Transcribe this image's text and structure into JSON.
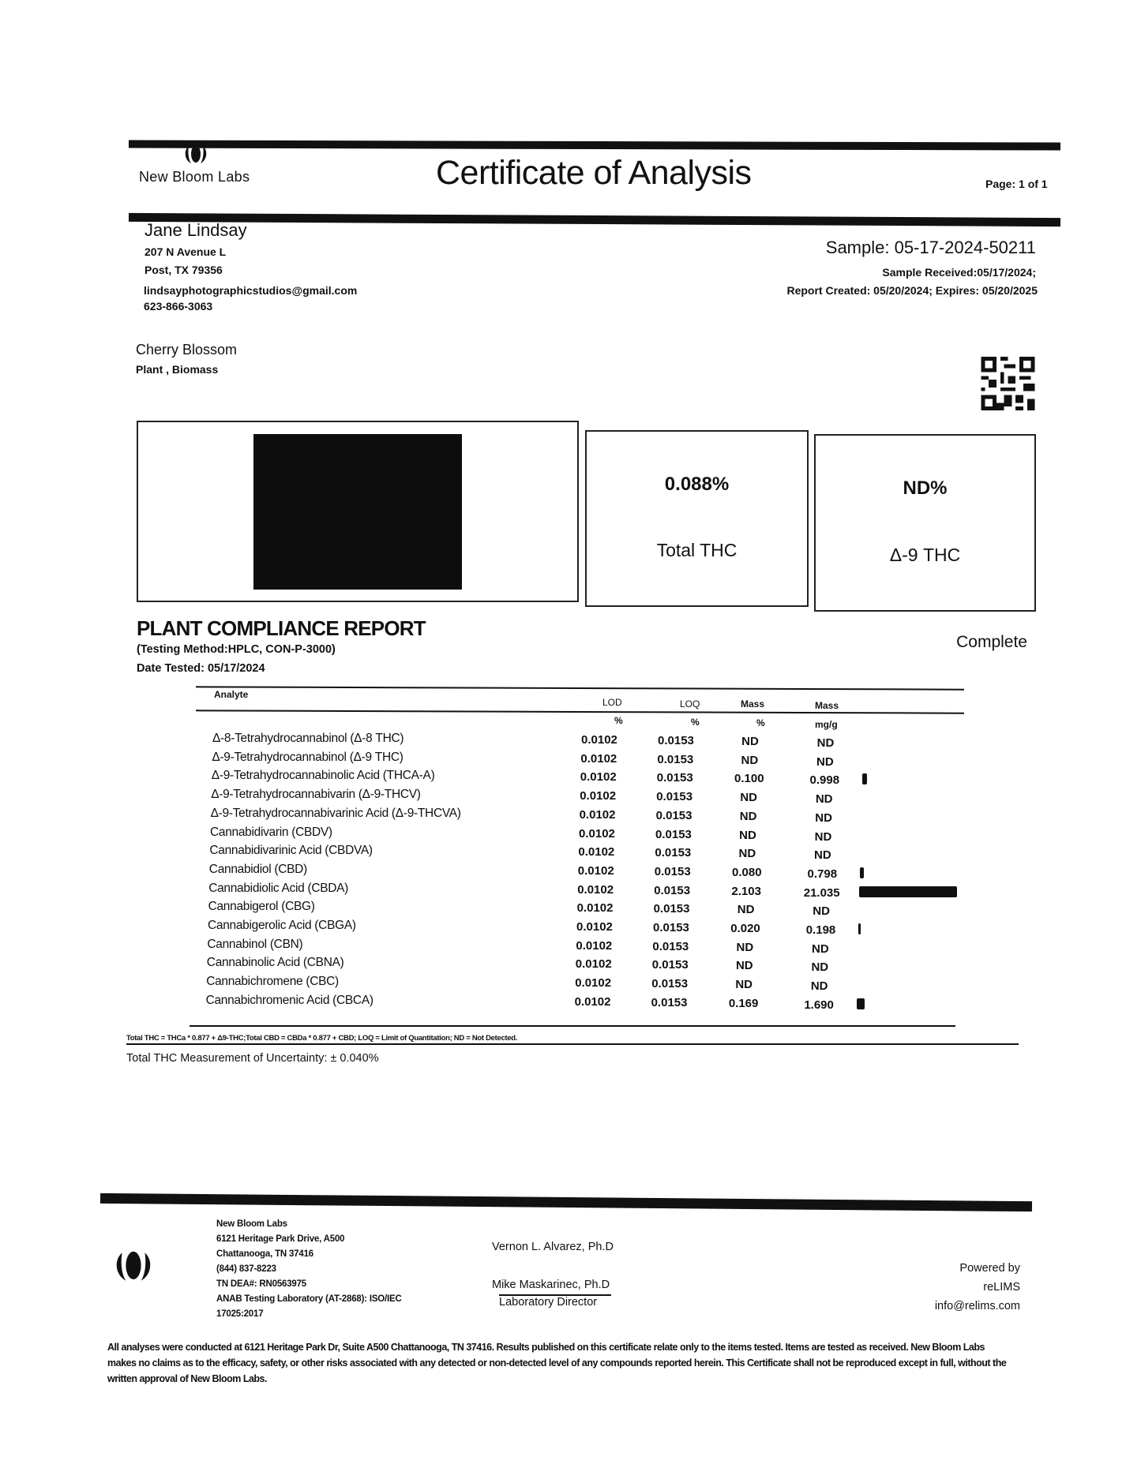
{
  "header": {
    "lab_name": "New Bloom Labs",
    "title": "Certificate of Analysis",
    "page": "Page: 1 of 1",
    "logo_icon": "lotus-logo-icon"
  },
  "client": {
    "name": "Jane Lindsay",
    "address1": "207 N Avenue L",
    "address2": "Post, TX 79356",
    "email": "lindsayphotographicstudios@gmail.com",
    "phone": "623-866-3063"
  },
  "sample": {
    "id": "Sample: 05-17-2024-50211",
    "received": "Sample Received:05/17/2024;",
    "created": "Report Created: 05/20/2024; Expires: 05/20/2025",
    "product_name": "Cherry Blossom",
    "product_type": "Plant , Biomass"
  },
  "summary": {
    "total_thc_value": "0.088%",
    "total_thc_label": "Total THC",
    "d9_thc_value": "ND%",
    "d9_thc_label": "Δ-9 THC"
  },
  "report": {
    "title": "PLANT COMPLIANCE REPORT",
    "method": "(Testing Method:HPLC, CON-P-3000)",
    "date_tested": "Date Tested: 05/17/2024",
    "status": "Complete"
  },
  "table": {
    "headers": [
      "Analyte",
      "LOD",
      "LOQ",
      "Mass",
      "Mass"
    ],
    "units": [
      "%",
      "%",
      "%",
      "mg/g"
    ],
    "rows": [
      {
        "analyte": "Δ-8-Tetrahydrocannabinol (Δ-8 THC)",
        "lod": "0.0102",
        "loq": "0.0153",
        "mass_pct": "ND",
        "mass_mgg": "ND"
      },
      {
        "analyte": "Δ-9-Tetrahydrocannabinol (Δ-9 THC)",
        "lod": "0.0102",
        "loq": "0.0153",
        "mass_pct": "ND",
        "mass_mgg": "ND"
      },
      {
        "analyte": "Δ-9-Tetrahydrocannabinolic Acid (THCA-A)",
        "lod": "0.0102",
        "loq": "0.0153",
        "mass_pct": "0.100",
        "mass_mgg": "0.998"
      },
      {
        "analyte": "Δ-9-Tetrahydrocannabivarin (Δ-9-THCV)",
        "lod": "0.0102",
        "loq": "0.0153",
        "mass_pct": "ND",
        "mass_mgg": "ND"
      },
      {
        "analyte": "Δ-9-Tetrahydrocannabivarinic Acid (Δ-9-THCVA)",
        "lod": "0.0102",
        "loq": "0.0153",
        "mass_pct": "ND",
        "mass_mgg": "ND"
      },
      {
        "analyte": "Cannabidivarin (CBDV)",
        "lod": "0.0102",
        "loq": "0.0153",
        "mass_pct": "ND",
        "mass_mgg": "ND"
      },
      {
        "analyte": "Cannabidivarinic Acid (CBDVA)",
        "lod": "0.0102",
        "loq": "0.0153",
        "mass_pct": "ND",
        "mass_mgg": "ND"
      },
      {
        "analyte": "Cannabidiol (CBD)",
        "lod": "0.0102",
        "loq": "0.0153",
        "mass_pct": "0.080",
        "mass_mgg": "0.798"
      },
      {
        "analyte": "Cannabidiolic Acid (CBDA)",
        "lod": "0.0102",
        "loq": "0.0153",
        "mass_pct": "2.103",
        "mass_mgg": "21.035"
      },
      {
        "analyte": "Cannabigerol (CBG)",
        "lod": "0.0102",
        "loq": "0.0153",
        "mass_pct": "ND",
        "mass_mgg": "ND"
      },
      {
        "analyte": "Cannabigerolic Acid (CBGA)",
        "lod": "0.0102",
        "loq": "0.0153",
        "mass_pct": "0.020",
        "mass_mgg": "0.198"
      },
      {
        "analyte": "Cannabinol (CBN)",
        "lod": "0.0102",
        "loq": "0.0153",
        "mass_pct": "ND",
        "mass_mgg": "ND"
      },
      {
        "analyte": "Cannabinolic Acid (CBNA)",
        "lod": "0.0102",
        "loq": "0.0153",
        "mass_pct": "ND",
        "mass_mgg": "ND"
      },
      {
        "analyte": "Cannabichromene (CBC)",
        "lod": "0.0102",
        "loq": "0.0153",
        "mass_pct": "ND",
        "mass_mgg": "ND"
      },
      {
        "analyte": "Cannabichromenic Acid (CBCA)",
        "lod": "0.0102",
        "loq": "0.0153",
        "mass_pct": "0.169",
        "mass_mgg": "1.690"
      }
    ],
    "footnote": "Total THC = THCa * 0.877 + Δ9-THC;Total CBD = CBDa * 0.877 + CBD; LOQ = Limit of Quantitation; ND = Not Detected.",
    "uncertainty": "Total THC Measurement of Uncertainty: ± 0.040%"
  },
  "footer": {
    "lab": [
      "New Bloom Labs",
      "6121 Heritage Park Drive, A500",
      "Chattanooga, TN 37416",
      "(844) 837-8223",
      "TN DEA#: RN0563975",
      "ANAB Testing Laboratory (AT-2868): ISO/IEC",
      "17025:2017"
    ],
    "signer1": "Vernon L. Alvarez, Ph.D",
    "signer2": "Mike Maskarinec, Ph.D",
    "signer2_title": "Laboratory Director",
    "powered": [
      "Powered by",
      "reLIMS",
      "info@relims.com"
    ],
    "disclaimer": "All analyses were conducted at 6121 Heritage Park Dr, Suite A500 Chattanooga, TN 37416. Results published on this certificate relate only to the items tested. Items are tested as received. New Bloom Labs makes no claims as to the efficacy, safety, or other risks associated with any detected or non-detected level of any compounds reported herein. This Certificate shall not be reproduced except in full, without the written approval of New Bloom Labs."
  }
}
